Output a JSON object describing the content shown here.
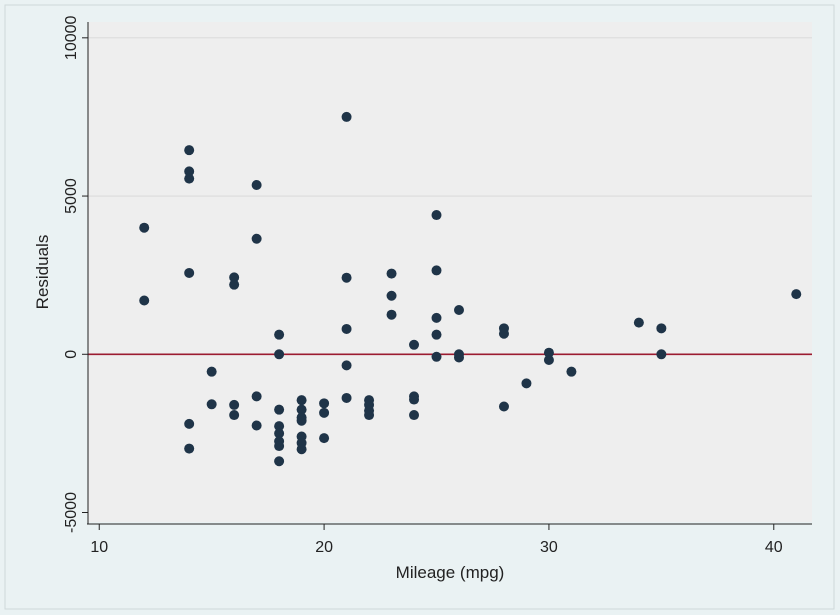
{
  "chart_data": {
    "type": "scatter",
    "title": "",
    "xlabel": "Mileage (mpg)",
    "ylabel": "Residuals",
    "xlim": [
      9.5,
      41.7
    ],
    "ylim": [
      -5300,
      10500
    ],
    "xticks": [
      10,
      20,
      30,
      40
    ],
    "yticks": [
      -5000,
      0,
      5000,
      10000
    ],
    "gridlines_y": [
      0,
      5000,
      10000
    ],
    "reference_line": {
      "y": 0,
      "color": "#9b1b30"
    },
    "marker_color": "#1f3448",
    "plot_background": "#eeeeee",
    "outer_background": "#eaf2f3",
    "points": [
      {
        "x": 12,
        "y": 4000
      },
      {
        "x": 12,
        "y": 1700
      },
      {
        "x": 14,
        "y": 6450
      },
      {
        "x": 14,
        "y": 5780
      },
      {
        "x": 14,
        "y": 5550
      },
      {
        "x": 14,
        "y": 2570
      },
      {
        "x": 14,
        "y": -2200
      },
      {
        "x": 14,
        "y": -2980
      },
      {
        "x": 15,
        "y": -550
      },
      {
        "x": 15,
        "y": -1580
      },
      {
        "x": 16,
        "y": 2430
      },
      {
        "x": 16,
        "y": 2200
      },
      {
        "x": 16,
        "y": -1600
      },
      {
        "x": 16,
        "y": -1920
      },
      {
        "x": 17,
        "y": 5350
      },
      {
        "x": 17,
        "y": 3650
      },
      {
        "x": 17,
        "y": -1330
      },
      {
        "x": 17,
        "y": -2250
      },
      {
        "x": 18,
        "y": 620
      },
      {
        "x": 18,
        "y": 0
      },
      {
        "x": 18,
        "y": -1750
      },
      {
        "x": 18,
        "y": -2270
      },
      {
        "x": 18,
        "y": -2500
      },
      {
        "x": 18,
        "y": -2750
      },
      {
        "x": 18,
        "y": -2900
      },
      {
        "x": 18,
        "y": -3380
      },
      {
        "x": 19,
        "y": -1450
      },
      {
        "x": 19,
        "y": -1750
      },
      {
        "x": 19,
        "y": -2000
      },
      {
        "x": 19,
        "y": -2100
      },
      {
        "x": 19,
        "y": -2600
      },
      {
        "x": 19,
        "y": -2800
      },
      {
        "x": 19,
        "y": -3000
      },
      {
        "x": 20,
        "y": -1550
      },
      {
        "x": 20,
        "y": -1850
      },
      {
        "x": 20,
        "y": -2650
      },
      {
        "x": 21,
        "y": 7500
      },
      {
        "x": 21,
        "y": 2420
      },
      {
        "x": 21,
        "y": 800
      },
      {
        "x": 21,
        "y": -350
      },
      {
        "x": 21,
        "y": -1380
      },
      {
        "x": 22,
        "y": -1450
      },
      {
        "x": 22,
        "y": -1600
      },
      {
        "x": 22,
        "y": -1780
      },
      {
        "x": 22,
        "y": -1920
      },
      {
        "x": 23,
        "y": 2550
      },
      {
        "x": 23,
        "y": 1850
      },
      {
        "x": 23,
        "y": 1250
      },
      {
        "x": 24,
        "y": 300
      },
      {
        "x": 24,
        "y": -1330
      },
      {
        "x": 24,
        "y": -1430
      },
      {
        "x": 24,
        "y": -1920
      },
      {
        "x": 25,
        "y": 4400
      },
      {
        "x": 25,
        "y": 2650
      },
      {
        "x": 25,
        "y": 1150
      },
      {
        "x": 25,
        "y": 620
      },
      {
        "x": 25,
        "y": -80
      },
      {
        "x": 26,
        "y": 1400
      },
      {
        "x": 26,
        "y": 0
      },
      {
        "x": 26,
        "y": -100
      },
      {
        "x": 28,
        "y": 820
      },
      {
        "x": 28,
        "y": 650
      },
      {
        "x": 28,
        "y": -1650
      },
      {
        "x": 29,
        "y": -920
      },
      {
        "x": 30,
        "y": 50
      },
      {
        "x": 30,
        "y": -180
      },
      {
        "x": 31,
        "y": -550
      },
      {
        "x": 34,
        "y": 1000
      },
      {
        "x": 35,
        "y": 820
      },
      {
        "x": 35,
        "y": 0
      },
      {
        "x": 41,
        "y": 1900
      }
    ]
  }
}
